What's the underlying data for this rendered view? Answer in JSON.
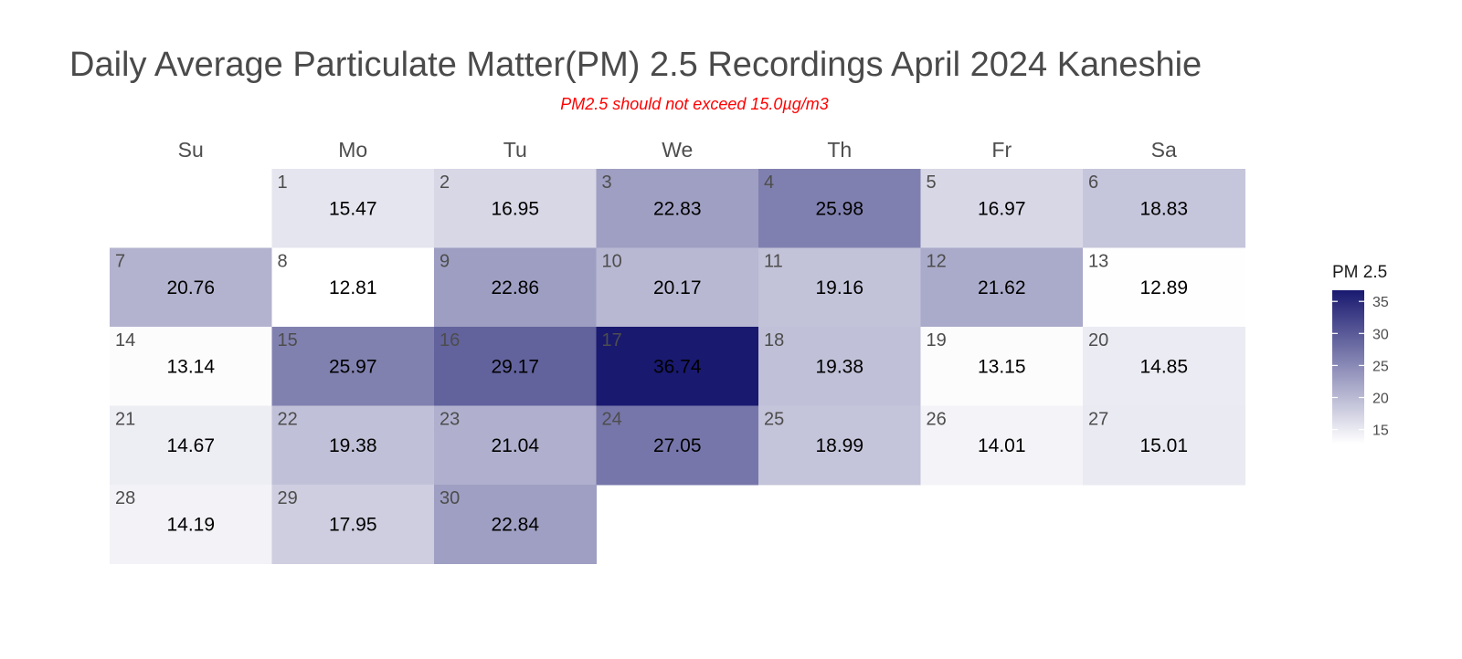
{
  "chart_data": {
    "type": "heatmap",
    "title": "Daily Average Particulate Matter(PM) 2.5 Recordings April 2024 Kaneshie",
    "subtitle": "PM2.5 should not exceed 15.0µg/m3",
    "weekdays": [
      "Su",
      "Mo",
      "Tu",
      "We",
      "Th",
      "Fr",
      "Sa"
    ],
    "first_weekday_index": 1,
    "days": [
      1,
      2,
      3,
      4,
      5,
      6,
      7,
      8,
      9,
      10,
      11,
      12,
      13,
      14,
      15,
      16,
      17,
      18,
      19,
      20,
      21,
      22,
      23,
      24,
      25,
      26,
      27,
      28,
      29,
      30
    ],
    "day_labels": [
      "1",
      "2",
      "3",
      "4",
      "5",
      "6",
      "7",
      "8",
      "9",
      "10",
      "11",
      "12",
      "13",
      "14",
      "15",
      "16",
      "17",
      "18",
      "19",
      "20",
      "21",
      "22",
      "23",
      "24",
      "25",
      "26",
      "27",
      "28",
      "29",
      "30"
    ],
    "values": [
      15.47,
      16.95,
      22.83,
      25.98,
      16.97,
      18.83,
      20.76,
      12.81,
      22.86,
      20.17,
      19.16,
      21.62,
      12.89,
      13.14,
      25.97,
      29.17,
      36.74,
      19.38,
      13.15,
      14.85,
      14.67,
      19.38,
      21.04,
      27.05,
      18.99,
      14.01,
      15.01,
      14.19,
      17.95,
      22.84
    ],
    "value_labels": [
      "15.47",
      "16.95",
      "22.83",
      "25.98",
      "16.97",
      "18.83",
      "20.76",
      "12.81",
      "22.86",
      "20.17",
      "19.16",
      "21.62",
      "12.89",
      "13.14",
      "25.97",
      "29.17",
      "36.74",
      "19.38",
      "13.15",
      "14.85",
      "14.67",
      "19.38",
      "21.04",
      "27.05",
      "18.99",
      "14.01",
      "15.01",
      "14.19",
      "17.95",
      "22.84"
    ],
    "legend": {
      "title": "PM 2.5",
      "placement": "right",
      "min": 12.81,
      "max": 36.74,
      "ticks": [
        15,
        20,
        25,
        30,
        35
      ],
      "tick_labels": [
        "15",
        "20",
        "25",
        "30",
        "35"
      ],
      "color_low": "#ffffff",
      "color_high": "#191970"
    }
  }
}
